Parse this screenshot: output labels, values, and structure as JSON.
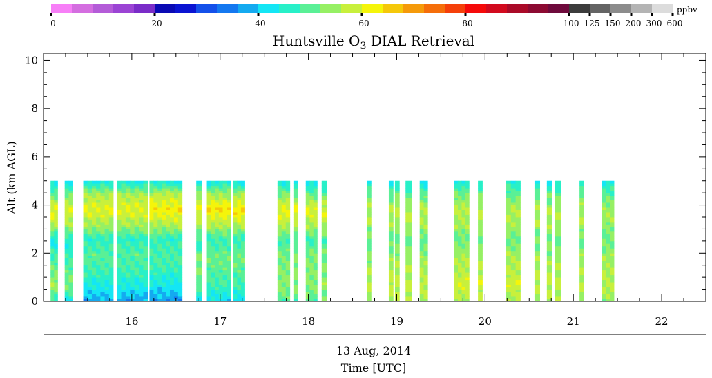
{
  "chart_data": {
    "type": "heatmap",
    "title": "Huntsville O",
    "title_sub": "3",
    "title_rest": " DIAL Retrieval",
    "ylabel": "Alt (km AGL)",
    "xlabel": "Time [UTC]",
    "date_label": "13 Aug, 2014",
    "xlim": [
      15.0,
      22.5
    ],
    "ylim": [
      0,
      10.3
    ],
    "x_ticks": [
      "16",
      "17",
      "18",
      "19",
      "20",
      "21",
      "22"
    ],
    "y_ticks": [
      "0",
      "2",
      "4",
      "6",
      "8",
      "10"
    ],
    "colorbar": {
      "unit": "ppbv",
      "tick_labels": [
        "0",
        "20",
        "40",
        "60",
        "80",
        "100",
        "125",
        "150",
        "200",
        "300",
        "600"
      ],
      "colors": [
        "#f77ff7",
        "#d46ee0",
        "#b45cd8",
        "#9b44d4",
        "#7a2cc8",
        "#0a0ab4",
        "#0a14d2",
        "#1450ea",
        "#1478f0",
        "#14aaf0",
        "#14e6f5",
        "#28f0c8",
        "#5af096",
        "#96f064",
        "#c8f03c",
        "#f5f50a",
        "#f5c80a",
        "#f59a0a",
        "#f56e0a",
        "#f5400a",
        "#f50a0a",
        "#d20a1e",
        "#aa0a28",
        "#8c0a32",
        "#6e0a3c",
        "#3c3c3c",
        "#646464",
        "#8c8c8c",
        "#b4b4b4",
        "#dcdcdc"
      ]
    },
    "profiles": {
      "altitude_max_km": 5.0,
      "altitude_step_km": 0.1,
      "segments": [
        [
          15.08,
          15.16
        ],
        [
          15.24,
          15.33
        ],
        [
          15.45,
          15.79
        ],
        [
          15.83,
          16.18
        ],
        [
          16.2,
          16.57
        ],
        [
          16.73,
          16.79
        ],
        [
          16.85,
          17.12
        ],
        [
          17.15,
          17.28
        ],
        [
          17.65,
          17.79
        ],
        [
          17.83,
          17.88
        ],
        [
          17.97,
          18.1
        ],
        [
          18.15,
          18.21
        ],
        [
          18.66,
          18.71
        ],
        [
          18.91,
          18.96
        ],
        [
          18.98,
          19.03
        ],
        [
          19.1,
          19.17
        ],
        [
          19.26,
          19.35
        ],
        [
          19.65,
          19.82
        ],
        [
          19.92,
          19.97
        ],
        [
          20.24,
          20.4
        ],
        [
          20.56,
          20.62
        ],
        [
          20.7,
          20.76
        ],
        [
          20.79,
          20.86
        ],
        [
          21.07,
          21.12
        ],
        [
          21.32,
          21.46
        ]
      ],
      "ozone_ppbv_by_segment": [
        [
          46,
          55,
          51,
          48,
          43,
          57,
          61,
          50,
          41
        ],
        [
          44,
          52,
          50,
          47,
          44,
          56,
          60,
          52,
          40
        ],
        [
          38,
          44,
          48,
          50,
          46,
          55,
          60,
          56,
          42
        ],
        [
          38,
          44,
          48,
          50,
          46,
          55,
          60,
          56,
          42
        ],
        [
          37,
          43,
          47,
          49,
          46,
          56,
          63,
          57,
          42
        ],
        [
          44,
          50,
          52,
          51,
          46,
          55,
          60,
          54,
          42
        ],
        [
          42,
          48,
          50,
          51,
          47,
          56,
          64,
          55,
          42
        ],
        [
          42,
          48,
          50,
          51,
          47,
          56,
          64,
          55,
          42
        ],
        [
          50,
          54,
          53,
          52,
          48,
          57,
          61,
          52,
          42
        ],
        [
          50,
          54,
          53,
          52,
          48,
          57,
          61,
          52,
          42
        ],
        [
          50,
          54,
          53,
          52,
          48,
          56,
          60,
          51,
          42
        ],
        [
          50,
          54,
          53,
          52,
          48,
          56,
          60,
          51,
          42
        ],
        [
          54,
          57,
          55,
          53,
          50,
          55,
          57,
          51,
          43
        ],
        [
          56,
          58,
          56,
          54,
          50,
          55,
          57,
          51,
          43
        ],
        [
          56,
          58,
          56,
          54,
          50,
          55,
          57,
          51,
          43
        ],
        [
          56,
          58,
          56,
          54,
          50,
          55,
          57,
          51,
          43
        ],
        [
          56,
          58,
          56,
          54,
          50,
          55,
          57,
          50,
          42
        ],
        [
          56,
          59,
          57,
          55,
          51,
          55,
          57,
          52,
          44
        ],
        [
          56,
          59,
          57,
          55,
          51,
          55,
          57,
          52,
          44
        ],
        [
          56,
          59,
          57,
          55,
          51,
          55,
          56,
          51,
          44
        ],
        [
          55,
          58,
          56,
          54,
          51,
          55,
          56,
          51,
          43
        ],
        [
          55,
          58,
          56,
          54,
          51,
          55,
          56,
          51,
          43
        ],
        [
          55,
          58,
          56,
          54,
          51,
          55,
          56,
          51,
          43
        ],
        [
          55,
          58,
          56,
          54,
          51,
          55,
          56,
          51,
          43
        ],
        [
          54,
          57,
          56,
          54,
          51,
          54,
          55,
          50,
          42
        ]
      ]
    }
  }
}
